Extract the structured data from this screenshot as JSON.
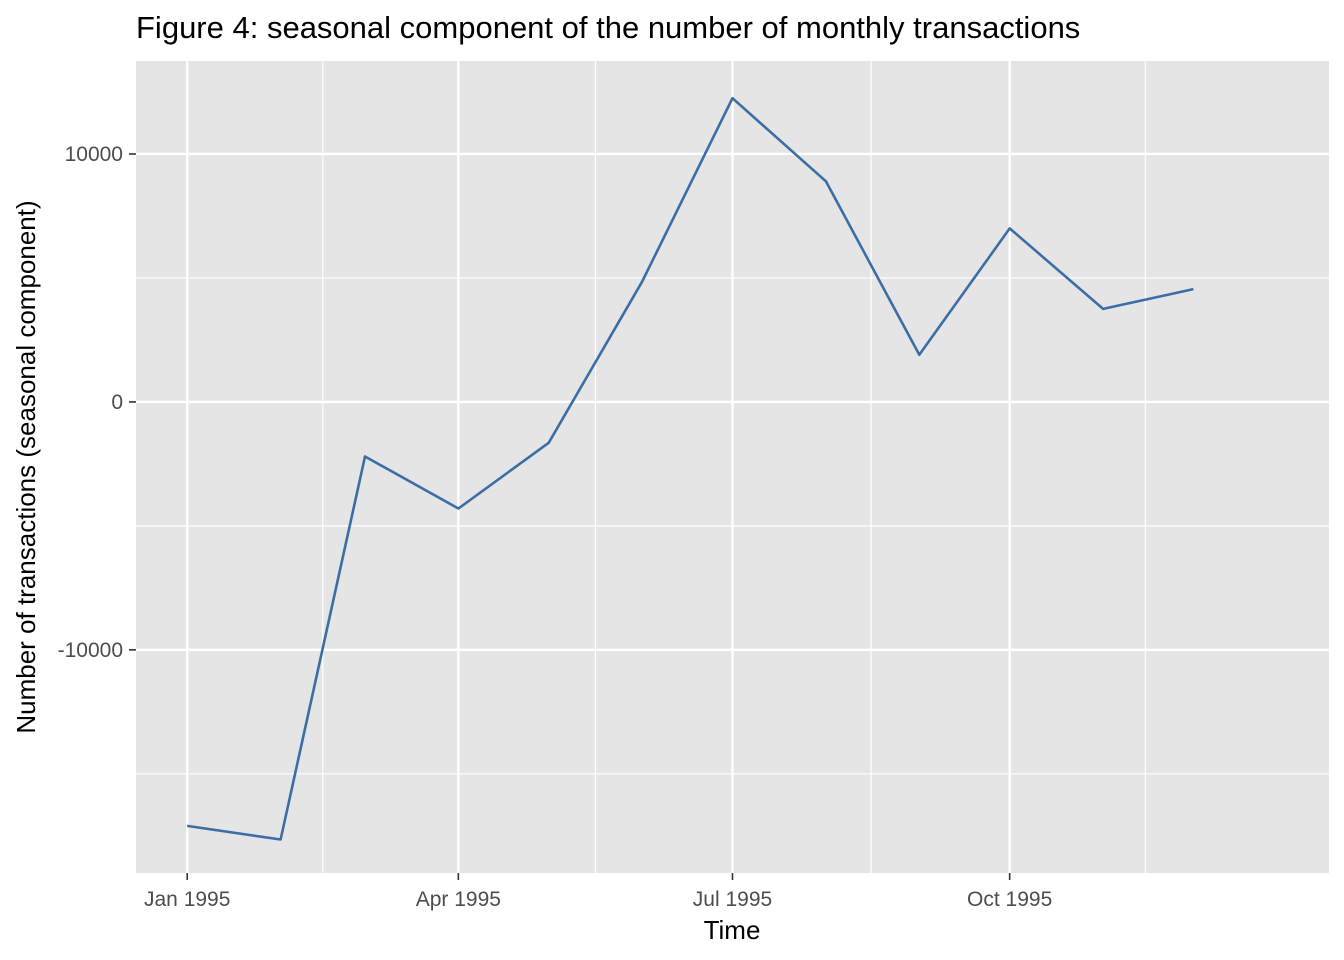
{
  "chart_data": {
    "type": "line",
    "title": "Figure 4: seasonal component of the number of monthly transactions",
    "xlabel": "Time",
    "ylabel": "Number of transactions (seasonal component)",
    "x": [
      "1995-01",
      "1995-02",
      "1995-03",
      "1995-04",
      "1995-05",
      "1995-06",
      "1995-07",
      "1995-08",
      "1995-09",
      "1995-10",
      "1995-11",
      "1995-12"
    ],
    "series": [
      {
        "values": [
          -17100,
          -17650,
          -2200,
          -4300,
          -1650,
          4850,
          12250,
          8900,
          1900,
          7000,
          3750,
          4550
        ],
        "color": "#3a6ea5"
      }
    ],
    "xticks": [
      {
        "x": "1995-01",
        "label": "Jan 1995"
      },
      {
        "x": "1995-04",
        "label": "Apr 1995"
      },
      {
        "x": "1995-07",
        "label": "Jul 1995"
      },
      {
        "x": "1995-10",
        "label": "Oct 1995"
      }
    ],
    "yticks": [
      {
        "value": -10000,
        "label": "-10000"
      },
      {
        "value": 0,
        "label": "0"
      },
      {
        "value": 10000,
        "label": "10000"
      }
    ],
    "ylim": [
      -19000,
      13750
    ],
    "xlim": [
      "1994-12-15",
      "1996-01-15"
    ],
    "grid": true,
    "panel_background": "#e5e5e5",
    "grid_color": "#ffffff"
  }
}
